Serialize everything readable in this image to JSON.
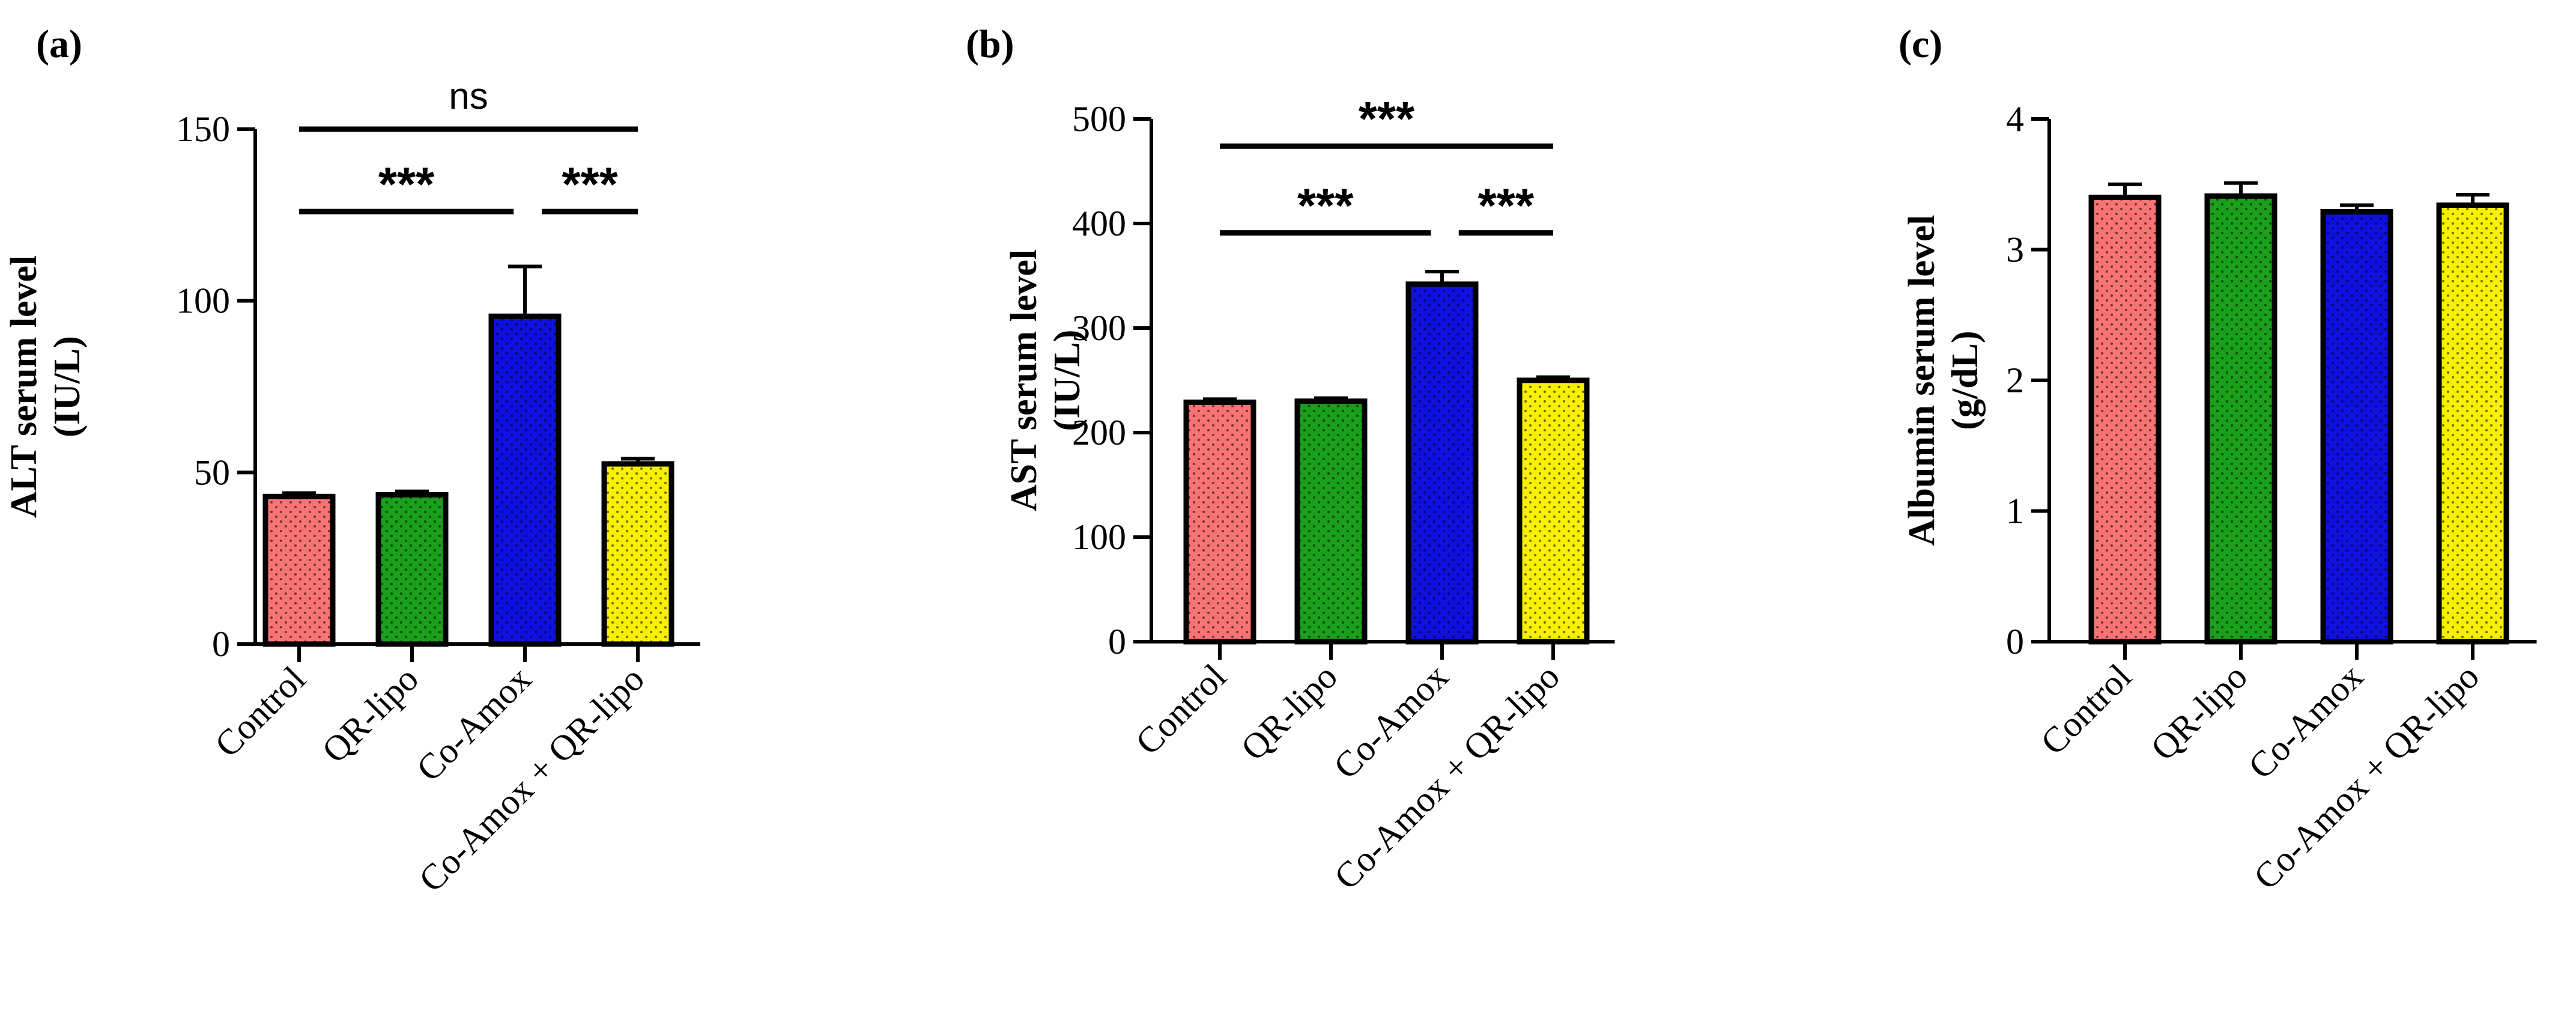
{
  "chart_data": [
    {
      "type": "bar",
      "panel_label": "(a)",
      "ylabel_line1": "ALT serum level",
      "ylabel_line2": "(IU/L)",
      "ylim": [
        0,
        150
      ],
      "yticks": [
        0,
        50,
        100,
        150
      ],
      "categories": [
        "Control",
        "QR-lipo",
        "Co-Amox",
        "Co-Amox + QR-lipo"
      ],
      "values": [
        43,
        43.5,
        95.5,
        52.5
      ],
      "errors": [
        1,
        1,
        14.5,
        1.5
      ],
      "colors": [
        "#f87474",
        "#1aa01a",
        "#1010e0",
        "#f8f000"
      ],
      "significance": [
        {
          "label": "ns",
          "from": 0,
          "to": 3,
          "y": 150
        },
        {
          "label": "***",
          "from": 0,
          "to": 1.9,
          "y": 126
        },
        {
          "label": "***",
          "from": 2.15,
          "to": 3,
          "y": 126
        }
      ]
    },
    {
      "type": "bar",
      "panel_label": "(b)",
      "ylabel_line1": "AST serum level",
      "ylabel_line2": "(IU/L)",
      "ylim": [
        0,
        500
      ],
      "yticks": [
        0,
        100,
        200,
        300,
        400,
        500
      ],
      "categories": [
        "Control",
        "QR-lipo",
        "Co-Amox",
        "Co-Amox + QR-lipo"
      ],
      "values": [
        229,
        230,
        342,
        250
      ],
      "errors": [
        3,
        3,
        12,
        3
      ],
      "colors": [
        "#f87474",
        "#1aa01a",
        "#1010e0",
        "#f8f000"
      ],
      "significance": [
        {
          "label": "***",
          "from": 0,
          "to": 3,
          "y": 474
        },
        {
          "label": "***",
          "from": 0,
          "to": 1.9,
          "y": 391
        },
        {
          "label": "***",
          "from": 2.15,
          "to": 3,
          "y": 391
        }
      ]
    },
    {
      "type": "bar",
      "panel_label": "(c)",
      "ylabel_line1": "Albumin serum level",
      "ylabel_line2": "(g/dL)",
      "ylim": [
        0,
        4
      ],
      "yticks": [
        0,
        1,
        2,
        3,
        4
      ],
      "categories": [
        "Control",
        "QR-lipo",
        "Co-Amox",
        "Co-Amox + QR-lipo"
      ],
      "values": [
        3.4,
        3.41,
        3.29,
        3.34
      ],
      "errors": [
        0.1,
        0.1,
        0.05,
        0.08
      ],
      "colors": [
        "#f87474",
        "#1aa01a",
        "#1010e0",
        "#f8f000"
      ],
      "significance": []
    }
  ]
}
